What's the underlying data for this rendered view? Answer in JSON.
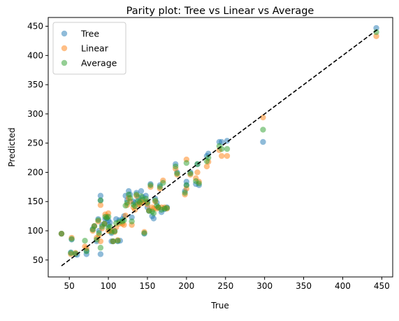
{
  "chart_data": {
    "type": "scatter",
    "title": "Parity plot: Tree vs Linear vs Average",
    "xlabel": "True",
    "ylabel": "Predicted",
    "xlim": [
      23,
      464
    ],
    "ylim": [
      21,
      465
    ],
    "xticks": [
      50,
      100,
      150,
      200,
      250,
      300,
      350,
      400,
      450
    ],
    "yticks": [
      50,
      100,
      150,
      200,
      250,
      300,
      350,
      400,
      450
    ],
    "grid": false,
    "legend_position": "top-left",
    "reference_line": {
      "label": "",
      "style": "dashed",
      "color": "#000000",
      "x": [
        40,
        445
      ],
      "y": [
        40,
        445
      ]
    },
    "series": [
      {
        "name": "Tree",
        "color": "#1f77b4",
        "alpha": 0.5,
        "points": [
          [
            40,
            95
          ],
          [
            52,
            63
          ],
          [
            53,
            85
          ],
          [
            58,
            60
          ],
          [
            60,
            59
          ],
          [
            72,
            66
          ],
          [
            72,
            60
          ],
          [
            80,
            103
          ],
          [
            82,
            108
          ],
          [
            85,
            82
          ],
          [
            87,
            120
          ],
          [
            88,
            100
          ],
          [
            90,
            60
          ],
          [
            90,
            160
          ],
          [
            90,
            152
          ],
          [
            92,
            110
          ],
          [
            95,
            112
          ],
          [
            96,
            120
          ],
          [
            98,
            121
          ],
          [
            100,
            118
          ],
          [
            100,
            110
          ],
          [
            102,
            114
          ],
          [
            104,
            96
          ],
          [
            104,
            82
          ],
          [
            106,
            82
          ],
          [
            108,
            100
          ],
          [
            110,
            120
          ],
          [
            112,
            82
          ],
          [
            114,
            118
          ],
          [
            115,
            83
          ],
          [
            118,
            120
          ],
          [
            120,
            125
          ],
          [
            122,
            160
          ],
          [
            124,
            152
          ],
          [
            126,
            168
          ],
          [
            128,
            162
          ],
          [
            130,
            123
          ],
          [
            132,
            150
          ],
          [
            134,
            148
          ],
          [
            136,
            165
          ],
          [
            138,
            157
          ],
          [
            140,
            150
          ],
          [
            142,
            168
          ],
          [
            144,
            158
          ],
          [
            146,
            95
          ],
          [
            148,
            160
          ],
          [
            150,
            150
          ],
          [
            150,
            140
          ],
          [
            152,
            134
          ],
          [
            154,
            180
          ],
          [
            156,
            125
          ],
          [
            158,
            121
          ],
          [
            160,
            155
          ],
          [
            162,
            148
          ],
          [
            164,
            140
          ],
          [
            166,
            178
          ],
          [
            168,
            132
          ],
          [
            172,
            137
          ],
          [
            175,
            140
          ],
          [
            186,
            214
          ],
          [
            188,
            200
          ],
          [
            198,
            168
          ],
          [
            200,
            184
          ],
          [
            200,
            178
          ],
          [
            205,
            200
          ],
          [
            212,
            180
          ],
          [
            214,
            214
          ],
          [
            216,
            178
          ],
          [
            226,
            228
          ],
          [
            228,
            232
          ],
          [
            242,
            252
          ],
          [
            245,
            252
          ],
          [
            252,
            254
          ],
          [
            298,
            252
          ],
          [
            443,
            447
          ]
        ]
      },
      {
        "name": "Linear",
        "color": "#ff7f0e",
        "alpha": 0.5,
        "points": [
          [
            40,
            95
          ],
          [
            52,
            60
          ],
          [
            53,
            88
          ],
          [
            58,
            62
          ],
          [
            70,
            73
          ],
          [
            72,
            70
          ],
          [
            80,
            100
          ],
          [
            82,
            108
          ],
          [
            85,
            88
          ],
          [
            87,
            116
          ],
          [
            88,
            92
          ],
          [
            90,
            82
          ],
          [
            90,
            144
          ],
          [
            92,
            104
          ],
          [
            95,
            112
          ],
          [
            96,
            128
          ],
          [
            98,
            124
          ],
          [
            100,
            130
          ],
          [
            100,
            100
          ],
          [
            102,
            100
          ],
          [
            104,
            100
          ],
          [
            106,
            82
          ],
          [
            108,
            98
          ],
          [
            110,
            106
          ],
          [
            112,
            84
          ],
          [
            114,
            112
          ],
          [
            118,
            112
          ],
          [
            120,
            110
          ],
          [
            122,
            126
          ],
          [
            124,
            144
          ],
          [
            126,
            156
          ],
          [
            128,
            150
          ],
          [
            130,
            110
          ],
          [
            132,
            140
          ],
          [
            134,
            136
          ],
          [
            136,
            160
          ],
          [
            138,
            145
          ],
          [
            140,
            145
          ],
          [
            142,
            150
          ],
          [
            144,
            148
          ],
          [
            146,
            98
          ],
          [
            148,
            150
          ],
          [
            150,
            145
          ],
          [
            152,
            135
          ],
          [
            154,
            175
          ],
          [
            156,
            140
          ],
          [
            158,
            138
          ],
          [
            160,
            150
          ],
          [
            162,
            138
          ],
          [
            164,
            140
          ],
          [
            166,
            172
          ],
          [
            168,
            140
          ],
          [
            170,
            186
          ],
          [
            172,
            140
          ],
          [
            175,
            138
          ],
          [
            186,
            206
          ],
          [
            188,
            196
          ],
          [
            198,
            162
          ],
          [
            200,
            172
          ],
          [
            200,
            222
          ],
          [
            205,
            196
          ],
          [
            212,
            190
          ],
          [
            214,
            200
          ],
          [
            216,
            184
          ],
          [
            226,
            210
          ],
          [
            228,
            218
          ],
          [
            242,
            238
          ],
          [
            245,
            228
          ],
          [
            252,
            228
          ],
          [
            298,
            294
          ],
          [
            443,
            433
          ]
        ]
      },
      {
        "name": "Average",
        "color": "#2ca02c",
        "alpha": 0.5,
        "points": [
          [
            40,
            95
          ],
          [
            52,
            62
          ],
          [
            53,
            86
          ],
          [
            58,
            61
          ],
          [
            70,
            83
          ],
          [
            72,
            65
          ],
          [
            80,
            102
          ],
          [
            82,
            108
          ],
          [
            85,
            85
          ],
          [
            87,
            118
          ],
          [
            88,
            96
          ],
          [
            90,
            71
          ],
          [
            90,
            152
          ],
          [
            92,
            107
          ],
          [
            95,
            112
          ],
          [
            96,
            124
          ],
          [
            98,
            122
          ],
          [
            100,
            124
          ],
          [
            100,
            105
          ],
          [
            102,
            107
          ],
          [
            104,
            98
          ],
          [
            106,
            82
          ],
          [
            108,
            99
          ],
          [
            110,
            113
          ],
          [
            112,
            83
          ],
          [
            114,
            115
          ],
          [
            118,
            116
          ],
          [
            120,
            118
          ],
          [
            122,
            143
          ],
          [
            124,
            148
          ],
          [
            126,
            162
          ],
          [
            128,
            156
          ],
          [
            130,
            116
          ],
          [
            132,
            145
          ],
          [
            134,
            142
          ],
          [
            136,
            162
          ],
          [
            138,
            151
          ],
          [
            140,
            148
          ],
          [
            142,
            159
          ],
          [
            144,
            153
          ],
          [
            146,
            96
          ],
          [
            148,
            155
          ],
          [
            150,
            148
          ],
          [
            152,
            134
          ],
          [
            154,
            178
          ],
          [
            156,
            133
          ],
          [
            158,
            130
          ],
          [
            160,
            152
          ],
          [
            162,
            143
          ],
          [
            164,
            140
          ],
          [
            166,
            175
          ],
          [
            168,
            136
          ],
          [
            170,
            182
          ],
          [
            172,
            138
          ],
          [
            175,
            139
          ],
          [
            186,
            210
          ],
          [
            188,
            198
          ],
          [
            198,
            165
          ],
          [
            200,
            178
          ],
          [
            200,
            216
          ],
          [
            205,
            198
          ],
          [
            212,
            185
          ],
          [
            214,
            214
          ],
          [
            216,
            181
          ],
          [
            226,
            219
          ],
          [
            228,
            225
          ],
          [
            242,
            245
          ],
          [
            245,
            240
          ],
          [
            252,
            240
          ],
          [
            298,
            273
          ],
          [
            443,
            440
          ]
        ]
      }
    ]
  }
}
